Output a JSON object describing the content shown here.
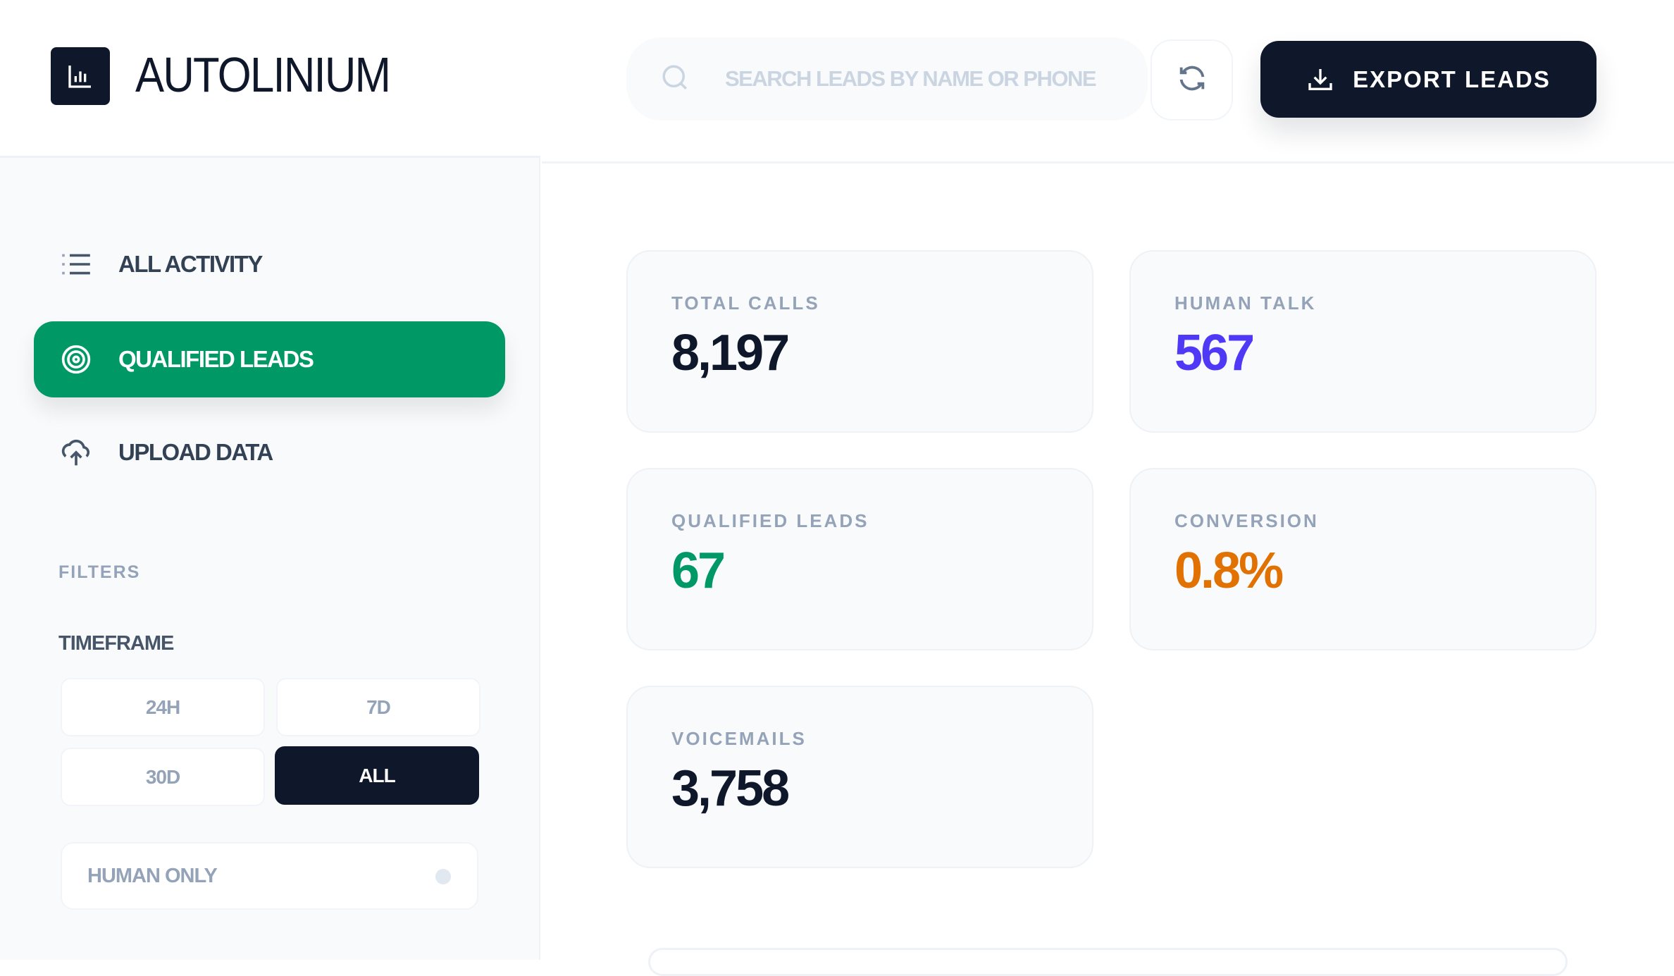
{
  "app": {
    "title": "AUTOLINIUM"
  },
  "sidebar": {
    "nav": [
      {
        "label": "ALL ACTIVITY",
        "icon": "list-icon"
      },
      {
        "label": "QUALIFIED LEADS",
        "icon": "target-icon",
        "active": true
      },
      {
        "label": "UPLOAD DATA",
        "icon": "cloud-upload-icon"
      }
    ],
    "filters_heading": "FILTERS",
    "timeframe_label": "TIMEFRAME",
    "timeframes": [
      "24H",
      "7D",
      "30D",
      "ALL"
    ],
    "timeframe_selected": "ALL",
    "human_only_label": "HUMAN ONLY",
    "human_only": false
  },
  "header": {
    "search_placeholder": "SEARCH LEADS BY NAME OR PHONE",
    "export_label": "EXPORT LEADS"
  },
  "colors": {
    "accent": "#009966",
    "dark": "#0f172a",
    "purple": "#4f39f6",
    "orange": "#e17100",
    "green": "#009966"
  },
  "stats": [
    {
      "label": "TOTAL CALLS",
      "value": "8,197"
    },
    {
      "label": "HUMAN TALK",
      "value": "567"
    },
    {
      "label": "QUALIFIED LEADS",
      "value": "67"
    },
    {
      "label": "CONVERSION",
      "value": "0.8%"
    },
    {
      "label": "VOICEMAILS",
      "value": "3,758"
    }
  ]
}
